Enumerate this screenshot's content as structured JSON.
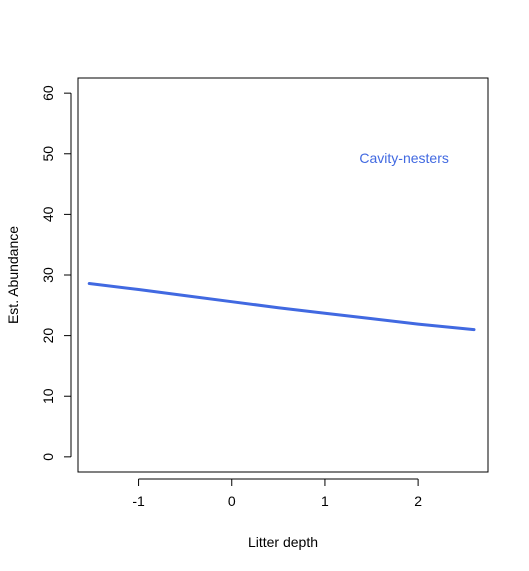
{
  "chart_data": {
    "type": "line",
    "xlabel": "Litter depth",
    "ylabel": "Est. Abundance",
    "xlim": [
      -1.65,
      2.75
    ],
    "ylim": [
      -2.5,
      62.5
    ],
    "x_ticks": [
      -1,
      0,
      1,
      2
    ],
    "y_ticks": [
      0,
      10,
      20,
      30,
      40,
      50,
      60
    ],
    "grid": false,
    "series": [
      {
        "name": "Cavity-nesters",
        "color": "#4169E1",
        "x": [
          -1.53,
          -1.0,
          -0.5,
          0.0,
          0.5,
          1.0,
          1.5,
          2.0,
          2.6
        ],
        "y": [
          28.6,
          27.6,
          26.6,
          25.6,
          24.6,
          23.7,
          22.8,
          21.9,
          21.0
        ]
      }
    ],
    "annotation": {
      "text": "Cavity-nesters",
      "x": 1.85,
      "y": 48.5,
      "color": "#4169E1"
    }
  }
}
